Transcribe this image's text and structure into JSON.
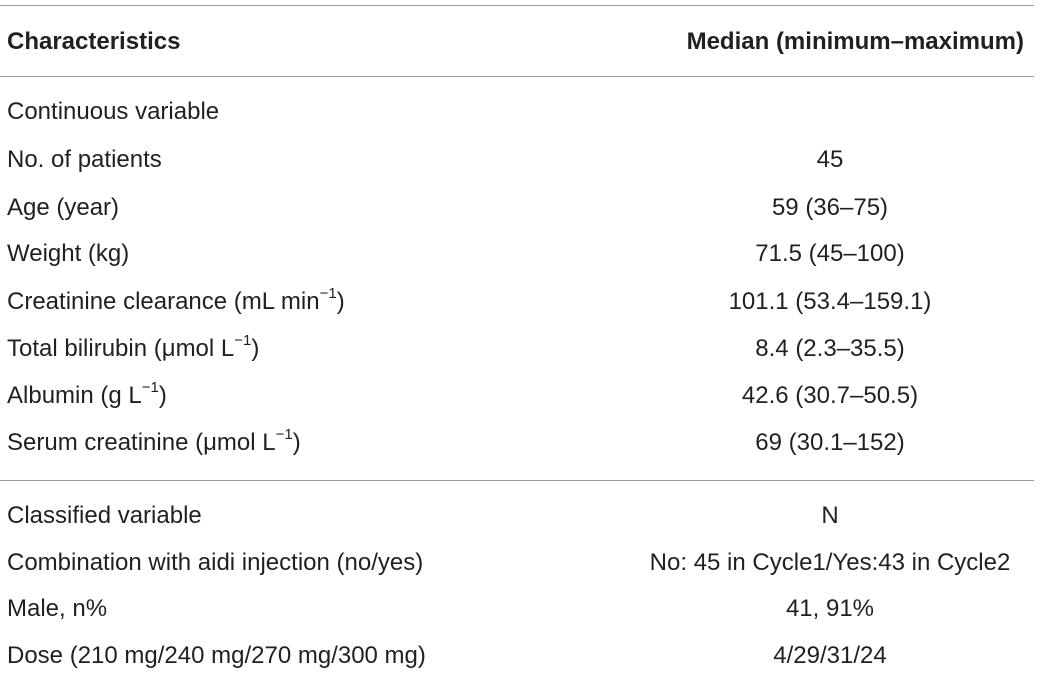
{
  "table": {
    "headers": {
      "characteristics": "Characteristics",
      "median": "Median (minimum–maximum)"
    },
    "continuous_section": {
      "label": "Continuous variable",
      "rows": [
        {
          "label": "No. of patients",
          "value": "45"
        },
        {
          "label": "Age (year)",
          "value": "59 (36–75)"
        },
        {
          "label": "Weight (kg)",
          "value": "71.5 (45–100)"
        },
        {
          "label": "Creatinine clearance (mL min",
          "label_sup": "−1",
          "label_tail": ")",
          "value": "101.1 (53.4–159.1)"
        },
        {
          "label": "Total bilirubin (μmol L",
          "label_sup": "−1",
          "label_tail": ")",
          "value": "8.4 (2.3–35.5)"
        },
        {
          "label": "Albumin (g L",
          "label_sup": "−1",
          "label_tail": ")",
          "value": "42.6 (30.7–50.5)"
        },
        {
          "label": "Serum creatinine (μmol L",
          "label_sup": "−1",
          "label_tail": ")",
          "value": "69 (30.1–152)"
        }
      ]
    },
    "classified_section": {
      "label": "Classified variable",
      "value": "N",
      "rows": [
        {
          "label": "Combination with aidi injection (no/yes)",
          "value": "No: 45 in Cycle1/Yes:43 in Cycle2"
        },
        {
          "label": "Male, n%",
          "value": "41, 91%"
        },
        {
          "label": "Dose (210 mg/240 mg/270 mg/300 mg)",
          "value": "4/29/31/24"
        }
      ]
    }
  }
}
